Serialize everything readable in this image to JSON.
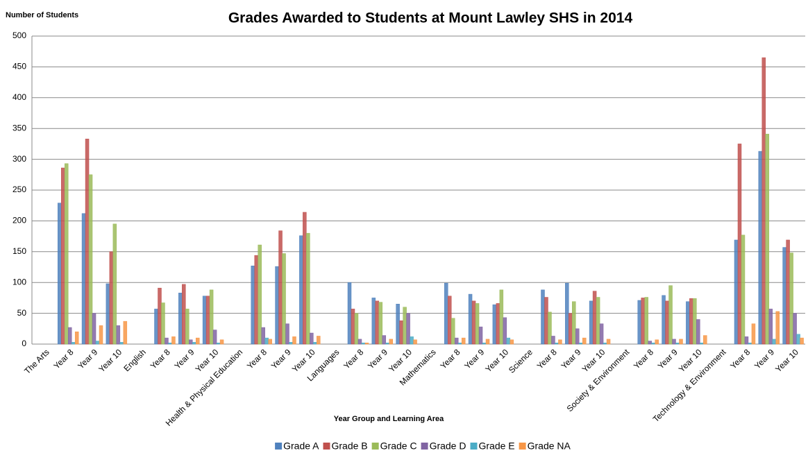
{
  "chart_data": {
    "type": "bar",
    "title": "Grades Awarded to Students at Mount Lawley SHS in 2014",
    "y_label": "Number of Students",
    "x_label": "Year Group and Learning Area",
    "categories": [
      "The Arts",
      "Year 8",
      "Year 9",
      "Year 10",
      "English",
      "Year 8",
      "Year 9",
      "Year 10",
      "Health & Physical Education",
      "Year 8",
      "Year 9",
      "Year 10",
      "Languages",
      "Year 8",
      "Year 9",
      "Year 10",
      "Mathematics",
      "Year 8",
      "Year 9",
      "Year 10",
      "Science",
      "Year 8",
      "Year 9",
      "Year 10",
      "Society & Environment",
      "Year 8",
      "Year 9",
      "Year 10",
      "Technology & Environment",
      "Year 8",
      "Year 9",
      "Year 10"
    ],
    "series": [
      {
        "name": "Grade A",
        "color": "#4f81bd",
        "values": [
          null,
          229,
          212,
          98,
          null,
          57,
          83,
          78,
          null,
          127,
          126,
          176,
          null,
          100,
          75,
          65,
          null,
          99,
          81,
          64,
          null,
          88,
          99,
          70,
          null,
          71,
          79,
          69,
          null,
          169,
          313,
          157
        ]
      },
      {
        "name": "Grade B",
        "color": "#c0504d",
        "values": [
          null,
          286,
          333,
          150,
          null,
          91,
          97,
          78,
          null,
          144,
          184,
          214,
          null,
          57,
          70,
          38,
          null,
          78,
          70,
          66,
          null,
          76,
          50,
          86,
          null,
          75,
          70,
          74,
          null,
          325,
          465,
          169
        ]
      },
      {
        "name": "Grade C",
        "color": "#9bbb59",
        "values": [
          null,
          293,
          275,
          195,
          null,
          67,
          57,
          88,
          null,
          161,
          147,
          180,
          null,
          50,
          68,
          60,
          null,
          42,
          66,
          88,
          null,
          52,
          69,
          76,
          null,
          76,
          95,
          74,
          null,
          177,
          341,
          148
        ]
      },
      {
        "name": "Grade D",
        "color": "#8064a2",
        "values": [
          null,
          27,
          50,
          30,
          null,
          10,
          7,
          23,
          null,
          27,
          33,
          18,
          null,
          8,
          14,
          50,
          null,
          10,
          28,
          43,
          null,
          13,
          25,
          33,
          null,
          5,
          8,
          40,
          null,
          12,
          57,
          50
        ]
      },
      {
        "name": "Grade E",
        "color": "#4bacc6",
        "values": [
          null,
          3,
          5,
          3,
          null,
          2,
          3,
          2,
          null,
          10,
          3,
          3,
          null,
          2,
          2,
          12,
          null,
          2,
          2,
          10,
          null,
          2,
          2,
          2,
          null,
          2,
          2,
          2,
          null,
          2,
          8,
          16
        ]
      },
      {
        "name": "Grade NA",
        "color": "#f79646",
        "values": [
          null,
          20,
          30,
          37,
          null,
          12,
          10,
          7,
          null,
          8,
          12,
          13,
          null,
          2,
          8,
          7,
          null,
          10,
          8,
          7,
          null,
          7,
          10,
          8,
          null,
          7,
          8,
          14,
          null,
          33,
          53,
          10
        ]
      }
    ],
    "ylim": [
      0,
      500
    ],
    "yticks": [
      0,
      50,
      100,
      150,
      200,
      250,
      300,
      350,
      400,
      450,
      500
    ],
    "grid": true
  }
}
